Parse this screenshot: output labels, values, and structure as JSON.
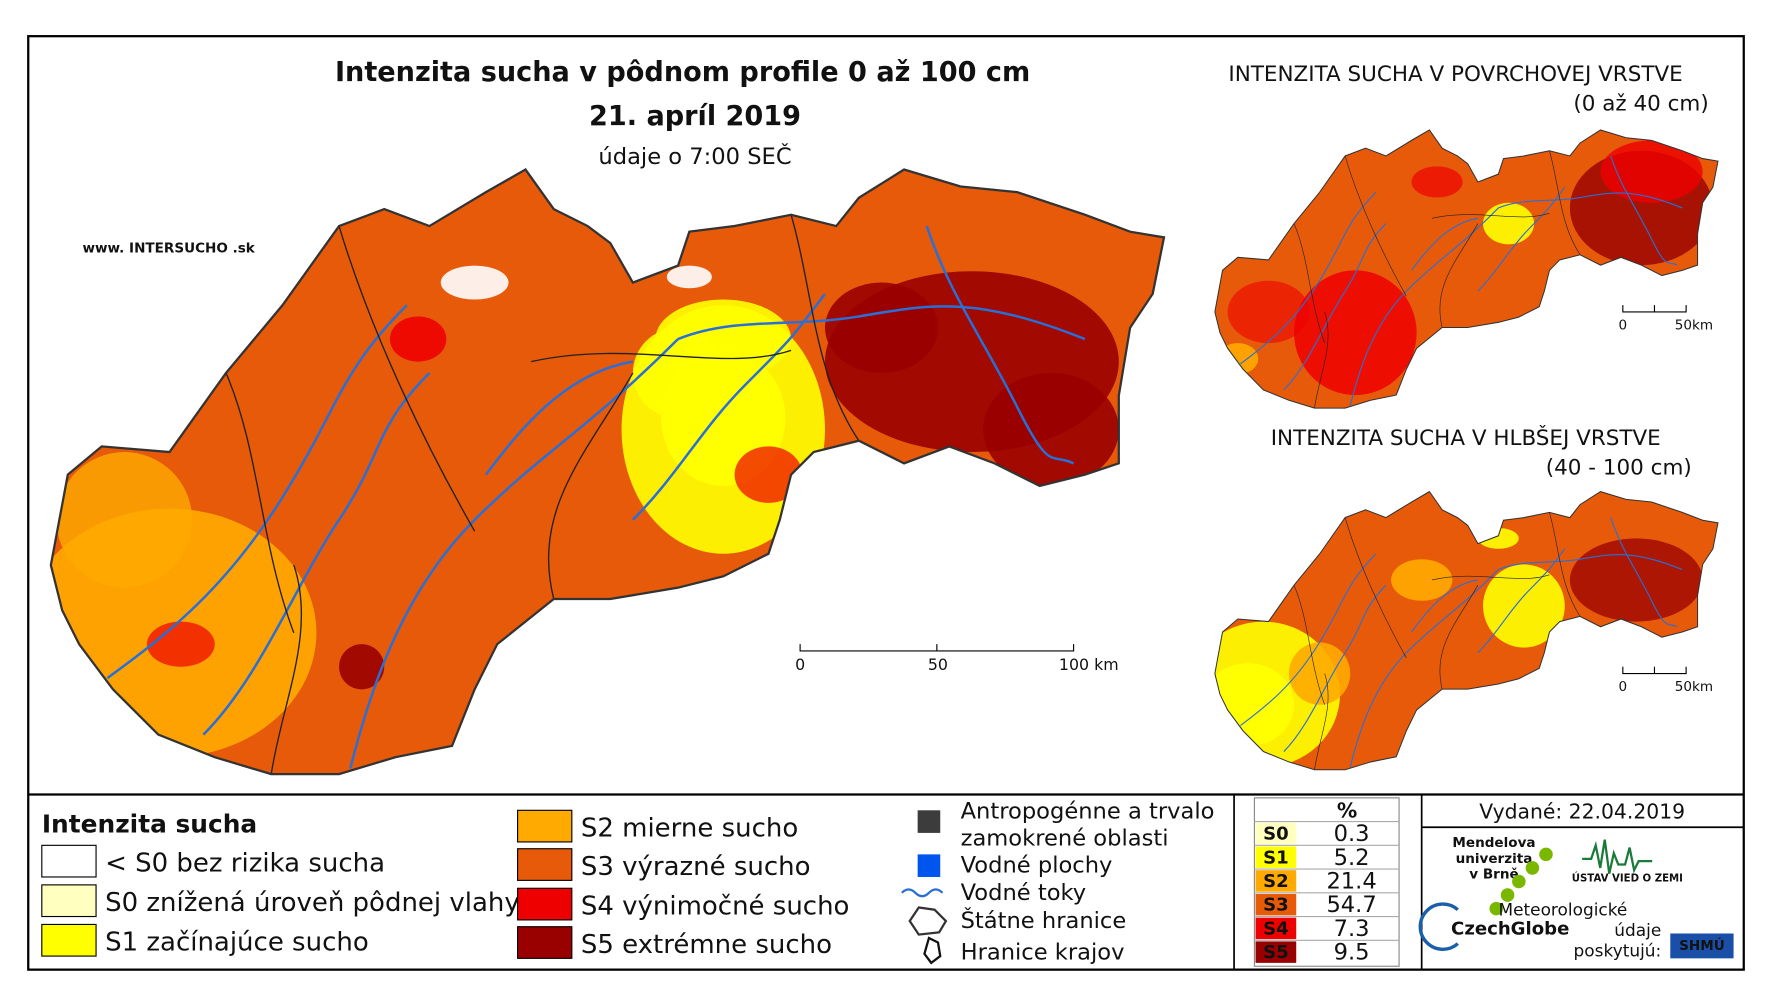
{
  "main_map": {
    "title": "Intenzita sucha v pôdnom profile 0 až 100 cm",
    "date": "21. apríl 2019",
    "subtitle": "údaje o 7:00 SEČ",
    "website": "www. INTERSUCHO .sk",
    "scale_labels": [
      "0",
      "50",
      "100 km"
    ]
  },
  "inset_surface": {
    "title": "INTENZITA SUCHA V POVRCHOVEJ VRSTVE",
    "subtitle": "(0 až 40 cm)",
    "scale_labels": [
      "0",
      "50km"
    ]
  },
  "inset_deep": {
    "title": "INTENZITA SUCHA V HLBŠEJ VRSTVE",
    "subtitle": "(40 - 100 cm)",
    "scale_labels": [
      "0",
      "50km"
    ]
  },
  "legend": {
    "title": "Intenzita sucha",
    "classes": [
      {
        "label": "< S0 bez rizika sucha",
        "color": "#ffffff"
      },
      {
        "label": "S0 znížená úroveň pôdnej vlahy",
        "color": "#ffffc0"
      },
      {
        "label": "S1 začínajúce sucho",
        "color": "#ffff00"
      },
      {
        "label": "S2 mierne sucho",
        "color": "#ffaa00"
      },
      {
        "label": "S3 výrazné sucho",
        "color": "#e65a0a"
      },
      {
        "label": "S4 výnimočné sucho",
        "color": "#ee0000"
      },
      {
        "label": "S5 extrémne sucho",
        "color": "#990000"
      }
    ],
    "other": [
      [
        "Antropogénne a trvalo",
        "zamokrené oblasti"
      ],
      [
        "Vodné plochy"
      ],
      [
        "Vodné toky"
      ],
      [
        "Štátne hranice"
      ],
      [
        "Hranice krajov"
      ]
    ]
  },
  "table": {
    "header": "%",
    "rows": [
      {
        "code": "S0",
        "percent": 0.3
      },
      {
        "code": "S1",
        "percent": 5.2
      },
      {
        "code": "S2",
        "percent": 21.4
      },
      {
        "code": "S3",
        "percent": 54.7
      },
      {
        "code": "S4",
        "percent": 7.3
      },
      {
        "code": "S5",
        "percent": 9.5
      }
    ]
  },
  "footer": {
    "issued": "Vydané: 22.04.2019",
    "mendel": [
      "Mendelova",
      "univerzita",
      "v Brně"
    ],
    "czechglobe": "CzechGlobe",
    "institute": "ÚSTAV VIED O ZEMI",
    "meteo": [
      "Meteorologické",
      "údaje",
      "poskytujú:"
    ],
    "shmu": "SHMÚ"
  }
}
